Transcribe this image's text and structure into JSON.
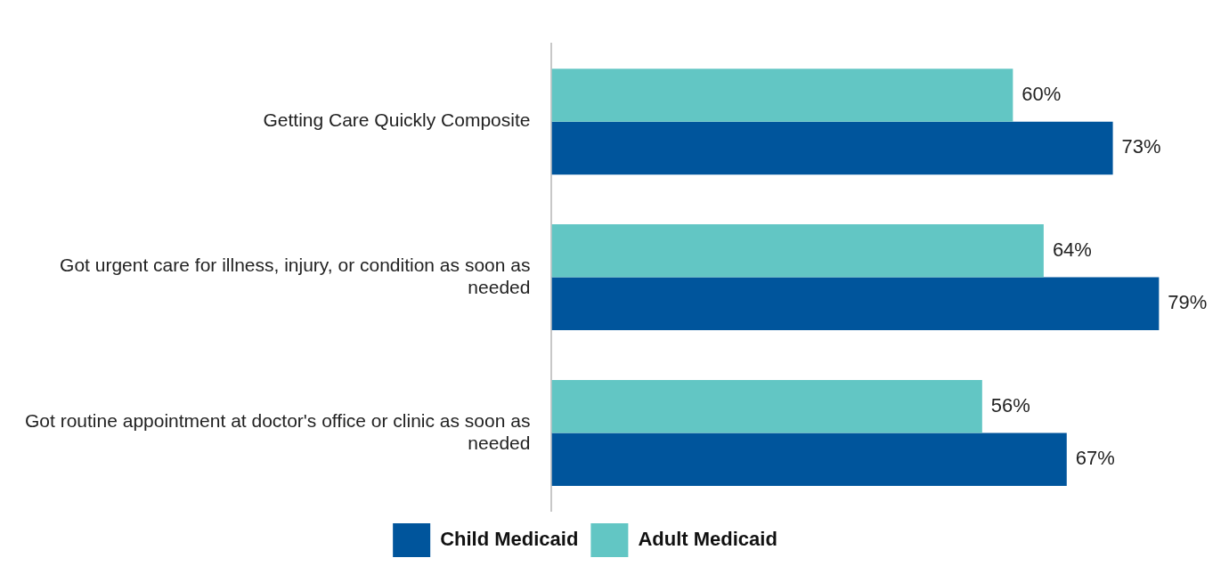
{
  "chart_data": {
    "type": "bar",
    "orientation": "horizontal",
    "categories": [
      "Getting Care Quickly Composite",
      "Got urgent care for illness, injury, or condition as soon as needed",
      "Got routine appointment at doctor's office or clinic as soon as needed"
    ],
    "series": [
      {
        "name": "Adult Medicaid",
        "color": "#62c6c4",
        "values": [
          60,
          64,
          56
        ],
        "value_labels": [
          "60%",
          "64%",
          "56%"
        ]
      },
      {
        "name": "Child Medicaid",
        "color": "#00559c",
        "values": [
          73,
          79,
          67
        ],
        "value_labels": [
          "73%",
          "79%",
          "67%"
        ]
      }
    ],
    "legend": "bottom",
    "grid": false,
    "tick_labels": "y"
  }
}
